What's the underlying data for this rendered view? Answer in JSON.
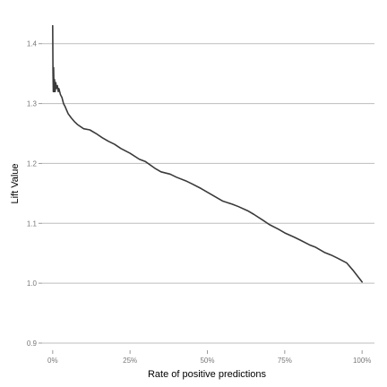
{
  "chart_data": {
    "type": "line",
    "title": "",
    "xlabel": "Rate of positive predictions",
    "ylabel": "Lift Value",
    "xlim": [
      -0.04,
      1.04
    ],
    "ylim": [
      0.885,
      1.44
    ],
    "grid": "horizontal",
    "legend": "none",
    "line_color": "#3a3a3a",
    "x_ticks": [
      {
        "value": 0.0,
        "label": "0%"
      },
      {
        "value": 0.25,
        "label": "25%"
      },
      {
        "value": 0.5,
        "label": "50%"
      },
      {
        "value": 0.75,
        "label": "75%"
      },
      {
        "value": 1.0,
        "label": "100%"
      }
    ],
    "y_ticks": [
      {
        "value": 0.9,
        "label": "0.9"
      },
      {
        "value": 1.0,
        "label": "1.0"
      },
      {
        "value": 1.1,
        "label": "1.1"
      },
      {
        "value": 1.2,
        "label": "1.2"
      },
      {
        "value": 1.3,
        "label": "1.3"
      },
      {
        "value": 1.4,
        "label": "1.4"
      }
    ],
    "series": [
      {
        "x": [
          0.0,
          0.001,
          0.002,
          0.003,
          0.004,
          0.005,
          0.006,
          0.007,
          0.008,
          0.01,
          0.012,
          0.015,
          0.018,
          0.02,
          0.025,
          0.03,
          0.035,
          0.04,
          0.05,
          0.06,
          0.07,
          0.08,
          0.1,
          0.12,
          0.14,
          0.16,
          0.18,
          0.2,
          0.22,
          0.25,
          0.28,
          0.3,
          0.33,
          0.35,
          0.38,
          0.4,
          0.43,
          0.45,
          0.48,
          0.5,
          0.53,
          0.55,
          0.58,
          0.6,
          0.63,
          0.65,
          0.68,
          0.7,
          0.73,
          0.75,
          0.78,
          0.8,
          0.83,
          0.85,
          0.88,
          0.9,
          0.92,
          0.95,
          0.97,
          1.0
        ],
        "y": [
          1.43,
          1.35,
          1.32,
          1.36,
          1.33,
          1.32,
          1.34,
          1.33,
          1.32,
          1.335,
          1.325,
          1.33,
          1.32,
          1.325,
          1.315,
          1.31,
          1.3,
          1.295,
          1.283,
          1.276,
          1.27,
          1.265,
          1.258,
          1.256,
          1.25,
          1.243,
          1.237,
          1.232,
          1.225,
          1.217,
          1.207,
          1.203,
          1.192,
          1.186,
          1.182,
          1.177,
          1.171,
          1.166,
          1.158,
          1.152,
          1.143,
          1.137,
          1.132,
          1.128,
          1.121,
          1.115,
          1.105,
          1.098,
          1.09,
          1.084,
          1.077,
          1.072,
          1.064,
          1.06,
          1.051,
          1.047,
          1.042,
          1.034,
          1.022,
          1.002
        ]
      }
    ]
  }
}
